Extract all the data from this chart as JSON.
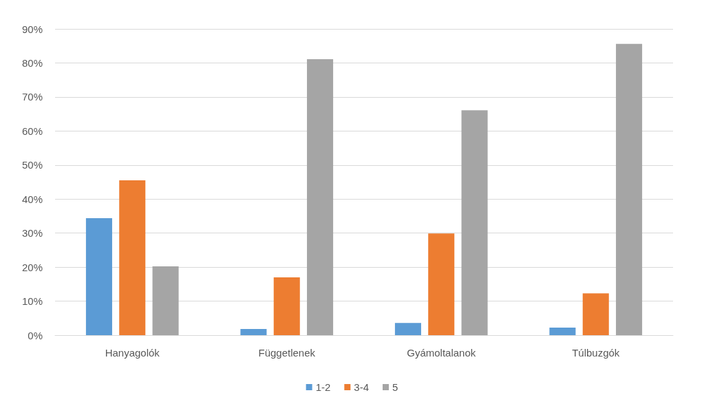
{
  "chart_data": {
    "type": "bar",
    "categories": [
      "Hanyagolók",
      "Függetlenek",
      "Gyámoltalanok",
      "Túlbuzgók"
    ],
    "series": [
      {
        "name": "1-2",
        "color": "#5b9bd5",
        "values": [
          34.4,
          1.8,
          3.6,
          2.2
        ]
      },
      {
        "name": "3-4",
        "color": "#ed7d31",
        "values": [
          45.5,
          17.0,
          29.9,
          12.3
        ]
      },
      {
        "name": "5",
        "color": "#a5a5a5",
        "values": [
          20.2,
          81.1,
          66.1,
          85.6
        ]
      }
    ],
    "ylim": [
      0,
      90
    ],
    "yticks": [
      {
        "value": 0,
        "label": "0%"
      },
      {
        "value": 10,
        "label": "10%"
      },
      {
        "value": 20,
        "label": "20%"
      },
      {
        "value": 30,
        "label": "30%"
      },
      {
        "value": 40,
        "label": "40%"
      },
      {
        "value": 50,
        "label": "50%"
      },
      {
        "value": 60,
        "label": "60%"
      },
      {
        "value": 70,
        "label": "70%"
      },
      {
        "value": 80,
        "label": "80%"
      },
      {
        "value": 90,
        "label": "90%"
      }
    ],
    "grid": "y",
    "legend": "bottom"
  }
}
